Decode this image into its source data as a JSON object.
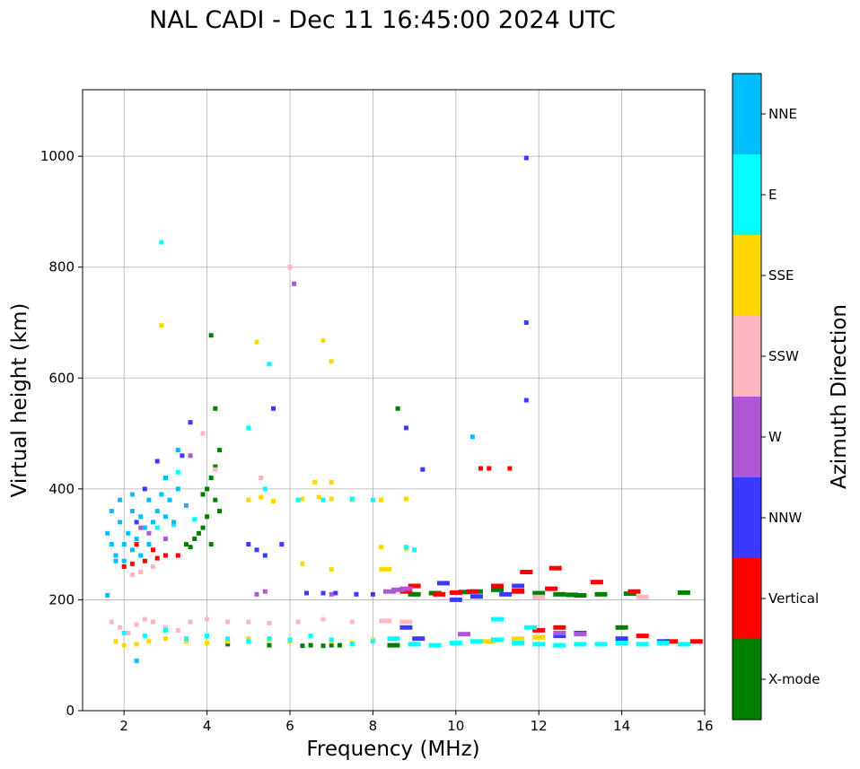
{
  "chart_data": {
    "type": "scatter",
    "title": "NAL CADI - Dec 11 16:45:00 2024 UTC",
    "xlabel": "Frequency (MHz)",
    "ylabel": "Virtual height (km)",
    "xlim": [
      1,
      16
    ],
    "ylim": [
      0,
      1120
    ],
    "xticks": [
      2,
      4,
      6,
      8,
      10,
      12,
      14,
      16
    ],
    "yticks": [
      0,
      200,
      400,
      600,
      800,
      1000
    ],
    "grid": true,
    "colorbar": {
      "label": "Azimuth Direction",
      "categories": [
        {
          "name": "X-mode",
          "color": "#008000"
        },
        {
          "name": "Vertical",
          "color": "#ff0000"
        },
        {
          "name": "NNW",
          "color": "#3a3aff"
        },
        {
          "name": "W",
          "color": "#b057d6"
        },
        {
          "name": "SSW",
          "color": "#ffb6c1"
        },
        {
          "name": "SSE",
          "color": "#ffd700"
        },
        {
          "name": "E",
          "color": "#00ffff"
        },
        {
          "name": "NNE",
          "color": "#00bfff"
        }
      ]
    },
    "series": [
      {
        "name": "X-mode",
        "points": [
          [
            3.5,
            300
          ],
          [
            3.7,
            310
          ],
          [
            3.9,
            330
          ],
          [
            4.0,
            350
          ],
          [
            4.2,
            380
          ],
          [
            4.0,
            400
          ],
          [
            4.2,
            440
          ],
          [
            4.3,
            470
          ],
          [
            3.6,
            295
          ],
          [
            3.8,
            320
          ],
          [
            4.1,
            300
          ],
          [
            4.3,
            360
          ],
          [
            6.5,
            118
          ],
          [
            6.8,
            117
          ],
          [
            7.0,
            118
          ],
          [
            5.5,
            118
          ],
          [
            4.5,
            120
          ],
          [
            8.5,
            118
          ],
          [
            8.6,
            545
          ],
          [
            9.0,
            210
          ],
          [
            9.5,
            212
          ],
          [
            10.5,
            215
          ],
          [
            11.0,
            218
          ],
          [
            11.5,
            215
          ],
          [
            12.0,
            212
          ],
          [
            12.5,
            210
          ],
          [
            13.0,
            208
          ],
          [
            13.5,
            210
          ],
          [
            14.2,
            211
          ],
          [
            15.5,
            213
          ],
          [
            14.0,
            150
          ],
          [
            3.9,
            390
          ],
          [
            4.1,
            420
          ],
          [
            4.2,
            545
          ],
          [
            4.1,
            677
          ],
          [
            6.3,
            117
          ],
          [
            7.2,
            118
          ],
          [
            10.2,
            214
          ],
          [
            12.8,
            209
          ]
        ]
      },
      {
        "name": "Vertical",
        "points": [
          [
            2.0,
            260
          ],
          [
            2.2,
            265
          ],
          [
            2.5,
            270
          ],
          [
            2.8,
            275
          ],
          [
            3.0,
            280
          ],
          [
            8.8,
            215
          ],
          [
            9.0,
            225
          ],
          [
            9.6,
            210
          ],
          [
            10.0,
            213
          ],
          [
            10.4,
            215
          ],
          [
            10.6,
            437
          ],
          [
            10.8,
            437
          ],
          [
            11.3,
            437
          ],
          [
            11.0,
            225
          ],
          [
            11.5,
            216
          ],
          [
            12.3,
            220
          ],
          [
            13.4,
            232
          ],
          [
            14.3,
            215
          ],
          [
            14.5,
            135
          ],
          [
            15.2,
            125
          ],
          [
            15.8,
            125
          ],
          [
            12.0,
            145
          ],
          [
            12.5,
            150
          ],
          [
            2.3,
            300
          ],
          [
            2.7,
            290
          ],
          [
            3.3,
            280
          ],
          [
            11.7,
            250
          ],
          [
            12.4,
            257
          ]
        ]
      },
      {
        "name": "NNW",
        "points": [
          [
            5.0,
            300
          ],
          [
            5.2,
            290
          ],
          [
            5.4,
            280
          ],
          [
            5.8,
            300
          ],
          [
            6.4,
            212
          ],
          [
            6.8,
            212
          ],
          [
            7.1,
            212
          ],
          [
            7.6,
            210
          ],
          [
            8.0,
            210
          ],
          [
            8.8,
            510
          ],
          [
            9.7,
            230
          ],
          [
            10.0,
            200
          ],
          [
            10.5,
            206
          ],
          [
            11.2,
            210
          ],
          [
            11.5,
            225
          ],
          [
            11.7,
            997
          ],
          [
            11.7,
            700
          ],
          [
            11.7,
            560
          ],
          [
            12.5,
            135
          ],
          [
            13.0,
            140
          ],
          [
            14.0,
            130
          ],
          [
            15.0,
            125
          ],
          [
            2.5,
            400
          ],
          [
            3.0,
            420
          ],
          [
            3.4,
            460
          ],
          [
            3.6,
            520
          ],
          [
            2.8,
            450
          ],
          [
            2.3,
            340
          ],
          [
            5.6,
            545
          ],
          [
            9.2,
            435
          ],
          [
            9.1,
            130
          ],
          [
            8.8,
            150
          ]
        ]
      },
      {
        "name": "W",
        "points": [
          [
            8.4,
            215
          ],
          [
            8.6,
            218
          ],
          [
            8.8,
            220
          ],
          [
            5.2,
            210
          ],
          [
            5.4,
            215
          ],
          [
            7.0,
            210
          ],
          [
            2.4,
            330
          ],
          [
            2.6,
            320
          ],
          [
            3.0,
            310
          ],
          [
            6.1,
            770
          ],
          [
            6.0,
            800
          ],
          [
            3.6,
            460
          ],
          [
            12.5,
            140
          ],
          [
            13.0,
            138
          ],
          [
            10.2,
            138
          ]
        ]
      },
      {
        "name": "SSW",
        "points": [
          [
            1.7,
            160
          ],
          [
            1.9,
            150
          ],
          [
            2.1,
            140
          ],
          [
            2.3,
            155
          ],
          [
            2.5,
            165
          ],
          [
            2.7,
            160
          ],
          [
            3.0,
            150
          ],
          [
            3.3,
            145
          ],
          [
            3.6,
            160
          ],
          [
            4.0,
            165
          ],
          [
            4.5,
            160
          ],
          [
            5.0,
            160
          ],
          [
            5.5,
            158
          ],
          [
            6.2,
            160
          ],
          [
            6.8,
            165
          ],
          [
            7.5,
            160
          ],
          [
            8.3,
            162
          ],
          [
            8.8,
            160
          ],
          [
            2.2,
            245
          ],
          [
            2.4,
            250
          ],
          [
            2.7,
            260
          ],
          [
            6.0,
            800
          ],
          [
            14.5,
            205
          ],
          [
            12.0,
            205
          ],
          [
            5.3,
            420
          ],
          [
            3.9,
            500
          ],
          [
            4.2,
            435
          ]
        ]
      },
      {
        "name": "SSE",
        "points": [
          [
            1.8,
            125
          ],
          [
            2.0,
            118
          ],
          [
            2.3,
            120
          ],
          [
            2.6,
            125
          ],
          [
            3.0,
            130
          ],
          [
            3.5,
            125
          ],
          [
            4.0,
            122
          ],
          [
            4.5,
            125
          ],
          [
            5.0,
            130
          ],
          [
            5.5,
            128
          ],
          [
            6.0,
            125
          ],
          [
            7.0,
            125
          ],
          [
            7.5,
            122
          ],
          [
            8.0,
            128
          ],
          [
            5.0,
            380
          ],
          [
            5.3,
            385
          ],
          [
            5.6,
            378
          ],
          [
            6.3,
            382
          ],
          [
            6.7,
            385
          ],
          [
            7.0,
            382
          ],
          [
            7.5,
            380
          ],
          [
            8.2,
            380
          ],
          [
            8.8,
            382
          ],
          [
            6.6,
            412
          ],
          [
            7.0,
            412
          ],
          [
            6.3,
            265
          ],
          [
            7.0,
            255
          ],
          [
            8.2,
            295
          ],
          [
            8.8,
            292
          ],
          [
            5.2,
            665
          ],
          [
            6.8,
            668
          ],
          [
            2.9,
            695
          ],
          [
            7.0,
            630
          ],
          [
            8.3,
            255
          ],
          [
            10.8,
            125
          ],
          [
            11.5,
            130
          ],
          [
            12.0,
            132
          ]
        ]
      },
      {
        "name": "E",
        "points": [
          [
            2.0,
            140
          ],
          [
            2.5,
            135
          ],
          [
            3.0,
            145
          ],
          [
            3.5,
            130
          ],
          [
            4.0,
            135
          ],
          [
            4.5,
            130
          ],
          [
            5.0,
            125
          ],
          [
            5.5,
            130
          ],
          [
            6.0,
            128
          ],
          [
            6.5,
            135
          ],
          [
            7.0,
            128
          ],
          [
            7.5,
            120
          ],
          [
            8.0,
            125
          ],
          [
            8.5,
            130
          ],
          [
            9.0,
            120
          ],
          [
            9.5,
            118
          ],
          [
            10.0,
            122
          ],
          [
            10.5,
            125
          ],
          [
            11.0,
            128
          ],
          [
            11.5,
            122
          ],
          [
            12.0,
            120
          ],
          [
            12.5,
            118
          ],
          [
            13.0,
            120
          ],
          [
            13.5,
            120
          ],
          [
            14.0,
            122
          ],
          [
            14.5,
            120
          ],
          [
            15.0,
            122
          ],
          [
            15.5,
            120
          ],
          [
            5.4,
            400
          ],
          [
            6.2,
            380
          ],
          [
            6.8,
            380
          ],
          [
            7.5,
            382
          ],
          [
            8.0,
            380
          ],
          [
            8.8,
            295
          ],
          [
            9.0,
            290
          ],
          [
            5.5,
            625
          ],
          [
            5.0,
            510
          ],
          [
            2.9,
            845
          ],
          [
            2.8,
            330
          ],
          [
            3.2,
            335
          ],
          [
            3.7,
            345
          ],
          [
            11.0,
            165
          ],
          [
            11.8,
            150
          ],
          [
            3.3,
            430
          ]
        ]
      },
      {
        "name": "NNE",
        "points": [
          [
            1.6,
            320
          ],
          [
            1.7,
            300
          ],
          [
            1.8,
            280
          ],
          [
            1.9,
            340
          ],
          [
            2.0,
            300
          ],
          [
            2.1,
            320
          ],
          [
            2.2,
            360
          ],
          [
            2.3,
            310
          ],
          [
            2.4,
            350
          ],
          [
            2.5,
            330
          ],
          [
            2.6,
            380
          ],
          [
            2.7,
            340
          ],
          [
            2.8,
            360
          ],
          [
            2.9,
            390
          ],
          [
            3.0,
            350
          ],
          [
            3.1,
            380
          ],
          [
            3.2,
            340
          ],
          [
            3.3,
            400
          ],
          [
            3.5,
            370
          ],
          [
            1.8,
            270
          ],
          [
            2.0,
            270
          ],
          [
            2.2,
            290
          ],
          [
            2.4,
            280
          ],
          [
            2.6,
            300
          ],
          [
            1.7,
            360
          ],
          [
            1.9,
            380
          ],
          [
            2.2,
            390
          ],
          [
            10.4,
            494
          ],
          [
            1.6,
            208
          ],
          [
            2.3,
            90
          ],
          [
            3.0,
            420
          ],
          [
            3.3,
            470
          ]
        ]
      }
    ]
  }
}
